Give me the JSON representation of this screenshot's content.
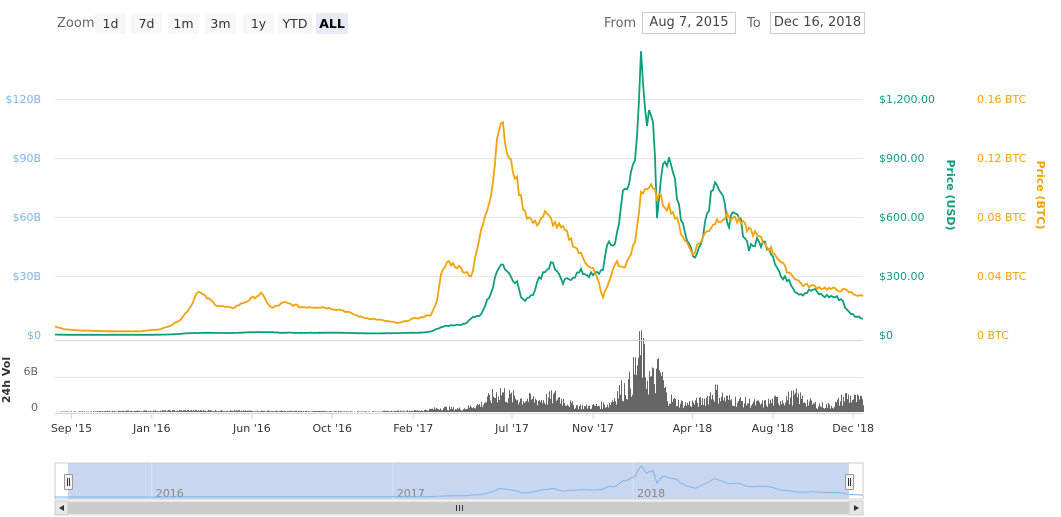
{
  "toolbar": {
    "zoom_label": "Zoom",
    "zoom_buttons": [
      "1d",
      "7d",
      "1m",
      "3m",
      "1y",
      "YTD",
      "ALL"
    ],
    "active_zoom": "ALL",
    "from_label": "From",
    "from_value": "Aug 7, 2015",
    "to_label": "To",
    "to_value": "Dec 16, 2018"
  },
  "colors": {
    "market_cap": "#7cb5ec",
    "price_usd": "#0e9e7e",
    "price_btc": "#f0a30a",
    "volume": "#666666",
    "navigator_bg": "#c9d6f0"
  },
  "chart_data": {
    "type": "line",
    "x_ticks": [
      "Sep '15",
      "Jan '16",
      "Jun '16",
      "Oct '16",
      "Feb '17",
      "Jul '17",
      "Nov '17",
      "Apr '18",
      "Aug '18",
      "Dec '18"
    ],
    "axes": {
      "market_cap": {
        "ticks": [
          "$0",
          "$30B",
          "$60B",
          "$90B",
          "$120B"
        ],
        "range": [
          0,
          120
        ]
      },
      "price_usd": {
        "label": "Price (USD)",
        "ticks": [
          "$0",
          "$300.00",
          "$600.00",
          "$900.00",
          "$1,200.00"
        ],
        "range": [
          0,
          1200
        ]
      },
      "price_btc": {
        "label": "Price (BTC)",
        "ticks": [
          "0 BTC",
          "0.04 BTC",
          "0.08 BTC",
          "0.12 BTC",
          "0.16 BTC"
        ],
        "range": [
          0,
          0.16
        ]
      },
      "volume": {
        "label": "24h Vol",
        "ticks": [
          "0",
          "6B"
        ],
        "range": [
          0,
          12
        ]
      }
    },
    "series": [
      {
        "name": "Price (USD)",
        "axis": "price_usd",
        "points": [
          [
            "2015-08-07",
            2
          ],
          [
            "2015-09-01",
            1
          ],
          [
            "2015-10-15",
            0.8
          ],
          [
            "2015-12-01",
            0.9
          ],
          [
            "2016-01-01",
            0.95
          ],
          [
            "2016-02-01",
            3
          ],
          [
            "2016-03-01",
            10
          ],
          [
            "2016-04-01",
            11
          ],
          [
            "2016-05-01",
            10
          ],
          [
            "2016-06-01",
            14
          ],
          [
            "2016-06-20",
            15
          ],
          [
            "2016-07-15",
            12
          ],
          [
            "2016-08-15",
            11
          ],
          [
            "2016-10-01",
            12
          ],
          [
            "2016-11-01",
            10
          ],
          [
            "2016-12-01",
            8
          ],
          [
            "2017-01-01",
            9
          ],
          [
            "2017-02-15",
            12
          ],
          [
            "2017-03-01",
            18
          ],
          [
            "2017-03-15",
            40
          ],
          [
            "2017-04-01",
            50
          ],
          [
            "2017-04-20",
            55
          ],
          [
            "2017-05-01",
            90
          ],
          [
            "2017-05-15",
            100
          ],
          [
            "2017-05-25",
            180
          ],
          [
            "2017-06-01",
            230
          ],
          [
            "2017-06-13",
            380
          ],
          [
            "2017-06-25",
            320
          ],
          [
            "2017-07-10",
            260
          ],
          [
            "2017-07-16",
            170
          ],
          [
            "2017-08-01",
            210
          ],
          [
            "2017-08-15",
            310
          ],
          [
            "2017-09-01",
            370
          ],
          [
            "2017-09-15",
            260
          ],
          [
            "2017-10-01",
            300
          ],
          [
            "2017-10-15",
            320
          ],
          [
            "2017-11-01",
            300
          ],
          [
            "2017-11-15",
            330
          ],
          [
            "2017-11-25",
            470
          ],
          [
            "2017-12-05",
            460
          ],
          [
            "2017-12-15",
            700
          ],
          [
            "2017-12-25",
            750
          ],
          [
            "2018-01-05",
            960
          ],
          [
            "2018-01-13",
            1380
          ],
          [
            "2018-01-20",
            1050
          ],
          [
            "2018-01-31",
            1150
          ],
          [
            "2018-02-06",
            600
          ],
          [
            "2018-02-15",
            920
          ],
          [
            "2018-02-25",
            850
          ],
          [
            "2018-03-05",
            800
          ],
          [
            "2018-03-15",
            600
          ],
          [
            "2018-03-25",
            480
          ],
          [
            "2018-04-06",
            380
          ],
          [
            "2018-04-15",
            500
          ],
          [
            "2018-04-25",
            650
          ],
          [
            "2018-05-05",
            820
          ],
          [
            "2018-05-15",
            700
          ],
          [
            "2018-05-25",
            580
          ],
          [
            "2018-06-10",
            600
          ],
          [
            "2018-06-25",
            450
          ],
          [
            "2018-07-10",
            470
          ],
          [
            "2018-07-25",
            460
          ],
          [
            "2018-08-01",
            410
          ],
          [
            "2018-08-10",
            330
          ],
          [
            "2018-08-15",
            280
          ],
          [
            "2018-08-25",
            290
          ],
          [
            "2018-09-05",
            220
          ],
          [
            "2018-09-15",
            210
          ],
          [
            "2018-10-01",
            230
          ],
          [
            "2018-10-15",
            200
          ],
          [
            "2018-11-01",
            195
          ],
          [
            "2018-11-15",
            180
          ],
          [
            "2018-11-20",
            130
          ],
          [
            "2018-11-25",
            115
          ],
          [
            "2018-12-05",
            95
          ],
          [
            "2018-12-16",
            85
          ]
        ]
      },
      {
        "name": "Price (BTC)",
        "axis": "price_btc",
        "points": [
          [
            "2015-08-07",
            0.006
          ],
          [
            "2015-08-20",
            0.004
          ],
          [
            "2015-09-15",
            0.003
          ],
          [
            "2015-11-01",
            0.0025
          ],
          [
            "2015-12-15",
            0.0025
          ],
          [
            "2016-01-15",
            0.004
          ],
          [
            "2016-02-01",
            0.007
          ],
          [
            "2016-02-15",
            0.011
          ],
          [
            "2016-03-01",
            0.02
          ],
          [
            "2016-03-10",
            0.03
          ],
          [
            "2016-03-25",
            0.025
          ],
          [
            "2016-04-10",
            0.02
          ],
          [
            "2016-05-01",
            0.018
          ],
          [
            "2016-05-20",
            0.022
          ],
          [
            "2016-06-15",
            0.028
          ],
          [
            "2016-07-01",
            0.018
          ],
          [
            "2016-07-20",
            0.022
          ],
          [
            "2016-08-15",
            0.019
          ],
          [
            "2016-09-15",
            0.019
          ],
          [
            "2016-10-15",
            0.017
          ],
          [
            "2016-11-15",
            0.012
          ],
          [
            "2016-12-15",
            0.01
          ],
          [
            "2017-01-10",
            0.008
          ],
          [
            "2017-02-01",
            0.011
          ],
          [
            "2017-02-15",
            0.012
          ],
          [
            "2017-03-01",
            0.014
          ],
          [
            "2017-03-10",
            0.025
          ],
          [
            "2017-03-15",
            0.04
          ],
          [
            "2017-03-25",
            0.05
          ],
          [
            "2017-04-15",
            0.045
          ],
          [
            "2017-05-01",
            0.04
          ],
          [
            "2017-05-10",
            0.06
          ],
          [
            "2017-05-20",
            0.08
          ],
          [
            "2017-06-01",
            0.1
          ],
          [
            "2017-06-10",
            0.14
          ],
          [
            "2017-06-13",
            0.15
          ],
          [
            "2017-06-25",
            0.12
          ],
          [
            "2017-07-05",
            0.11
          ],
          [
            "2017-07-16",
            0.09
          ],
          [
            "2017-07-25",
            0.08
          ],
          [
            "2017-08-05",
            0.075
          ],
          [
            "2017-08-20",
            0.082
          ],
          [
            "2017-09-05",
            0.075
          ],
          [
            "2017-09-20",
            0.07
          ],
          [
            "2017-10-05",
            0.06
          ],
          [
            "2017-10-20",
            0.05
          ],
          [
            "2017-11-01",
            0.045
          ],
          [
            "2017-11-10",
            0.035
          ],
          [
            "2017-11-15",
            0.025
          ],
          [
            "2017-11-25",
            0.035
          ],
          [
            "2017-12-05",
            0.05
          ],
          [
            "2017-12-15",
            0.045
          ],
          [
            "2017-12-25",
            0.05
          ],
          [
            "2018-01-05",
            0.065
          ],
          [
            "2018-01-13",
            0.098
          ],
          [
            "2018-01-25",
            0.1
          ],
          [
            "2018-02-05",
            0.095
          ],
          [
            "2018-02-15",
            0.09
          ],
          [
            "2018-03-01",
            0.085
          ],
          [
            "2018-03-15",
            0.07
          ],
          [
            "2018-04-01",
            0.055
          ],
          [
            "2018-04-15",
            0.065
          ],
          [
            "2018-05-01",
            0.075
          ],
          [
            "2018-05-15",
            0.08
          ],
          [
            "2018-06-01",
            0.08
          ],
          [
            "2018-06-15",
            0.075
          ],
          [
            "2018-07-01",
            0.07
          ],
          [
            "2018-07-20",
            0.062
          ],
          [
            "2018-08-05",
            0.055
          ],
          [
            "2018-08-20",
            0.045
          ],
          [
            "2018-09-01",
            0.04
          ],
          [
            "2018-09-15",
            0.034
          ],
          [
            "2018-10-01",
            0.033
          ],
          [
            "2018-10-15",
            0.032
          ],
          [
            "2018-11-01",
            0.031
          ],
          [
            "2018-11-20",
            0.03
          ],
          [
            "2018-12-01",
            0.028
          ],
          [
            "2018-12-16",
            0.026
          ]
        ]
      },
      {
        "name": "24h Vol",
        "axis": "volume",
        "points": [
          [
            "2015-08-07",
            0.05
          ],
          [
            "2016-03-01",
            0.3
          ],
          [
            "2016-06-15",
            0.2
          ],
          [
            "2016-12-01",
            0.1
          ],
          [
            "2017-02-15",
            0.3
          ],
          [
            "2017-03-15",
            0.8
          ],
          [
            "2017-04-15",
            0.6
          ],
          [
            "2017-05-15",
            1.5
          ],
          [
            "2017-06-13",
            4
          ],
          [
            "2017-06-25",
            3
          ],
          [
            "2017-07-15",
            2.5
          ],
          [
            "2017-08-15",
            2.3
          ],
          [
            "2017-09-05",
            3
          ],
          [
            "2017-10-01",
            1.3
          ],
          [
            "2017-10-20",
            1
          ],
          [
            "2017-11-05",
            1.2
          ],
          [
            "2017-11-25",
            1.5
          ],
          [
            "2017-12-10",
            4
          ],
          [
            "2017-12-25",
            5
          ],
          [
            "2018-01-05",
            8.5
          ],
          [
            "2018-01-13",
            11.8
          ],
          [
            "2018-01-20",
            7
          ],
          [
            "2018-02-01",
            6
          ],
          [
            "2018-02-10",
            8
          ],
          [
            "2018-02-20",
            3
          ],
          [
            "2018-03-05",
            2
          ],
          [
            "2018-03-20",
            1.5
          ],
          [
            "2018-04-15",
            2
          ],
          [
            "2018-05-05",
            4
          ],
          [
            "2018-05-20",
            2.5
          ],
          [
            "2018-06-15",
            2
          ],
          [
            "2018-07-15",
            1.5
          ],
          [
            "2018-08-15",
            2.5
          ],
          [
            "2018-09-05",
            3
          ],
          [
            "2018-10-01",
            1.5
          ],
          [
            "2018-10-20",
            1.2
          ],
          [
            "2018-11-01",
            1.3
          ],
          [
            "2018-11-20",
            3
          ],
          [
            "2018-12-01",
            2.5
          ],
          [
            "2018-12-16",
            2
          ]
        ]
      }
    ],
    "navigator": {
      "year_labels": [
        "2016",
        "2017",
        "2018"
      ]
    },
    "legend": "none",
    "grid": true
  }
}
